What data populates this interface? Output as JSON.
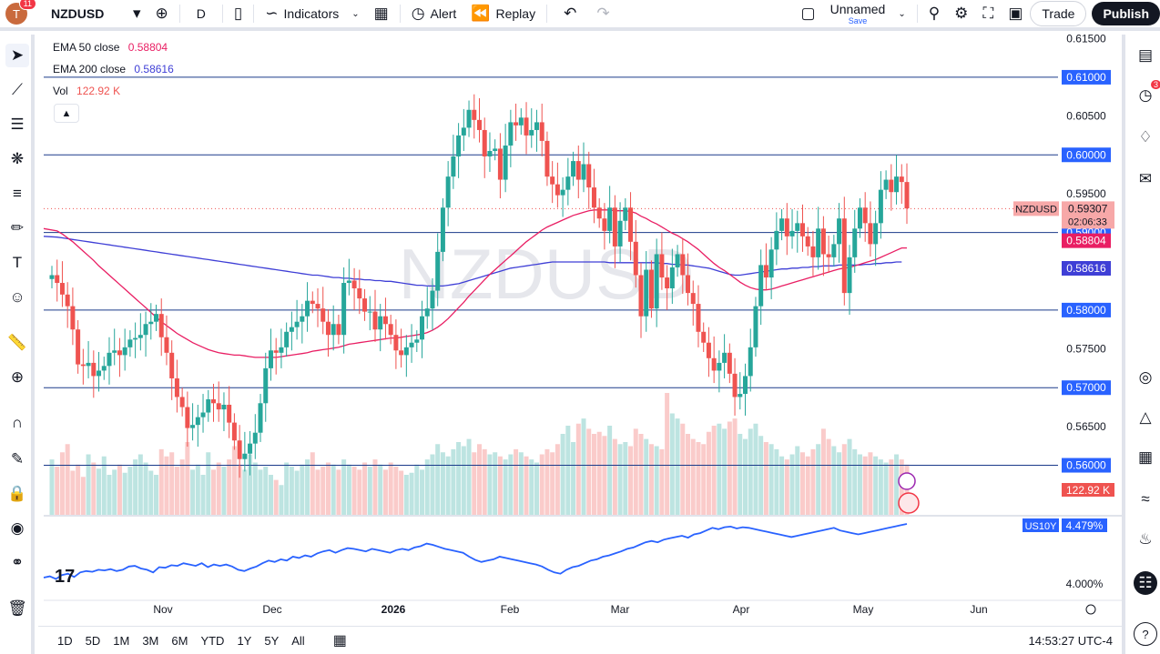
{
  "topbar": {
    "avatar_letter": "T",
    "avatar_badge": "11",
    "symbol": "NZDUSD",
    "interval": "D",
    "indicators_label": "Indicators",
    "alert_label": "Alert",
    "replay_label": "Replay",
    "layout_name": "Unnamed",
    "layout_save": "Save",
    "trade_label": "Trade",
    "publish_label": "Publish"
  },
  "legend": {
    "ema50_label": "EMA 50 close",
    "ema50_value": "0.58804",
    "ema200_label": "EMA 200 close",
    "ema200_value": "0.58616",
    "vol_label": "Vol",
    "vol_value": "122.92 K"
  },
  "rightbar": {
    "alerts_badge": "3"
  },
  "bottombar": {
    "ranges": [
      "1D",
      "5D",
      "1M",
      "3M",
      "6M",
      "YTD",
      "1Y",
      "5Y",
      "All"
    ],
    "clock": "14:53:27 UTC-4"
  },
  "colors": {
    "up": "#26a69a",
    "down": "#ef5350",
    "ema50": "#e91e63",
    "ema200": "#3f3fd6",
    "hline": "#2962ff",
    "us10y": "#2962ff"
  },
  "chart_data": {
    "type": "candlestick",
    "symbol_watermark": "NZDUSD",
    "x_labels": [
      "Nov",
      "Dec",
      "2026",
      "Feb",
      "Mar",
      "Apr",
      "May",
      "Jun"
    ],
    "y_ticks": [
      "0.61500",
      "0.60500",
      "0.59500",
      "0.57500",
      "0.56500"
    ],
    "ylim": [
      0.5535,
      0.6155
    ],
    "horizontal_levels": [
      0.61,
      0.6,
      0.59,
      0.58,
      0.57,
      0.56
    ],
    "level_labels": [
      "0.61000",
      "0.60000",
      "0.59000",
      "0.58000",
      "0.57000",
      "0.56000"
    ],
    "last_price": {
      "symbol": "NZDUSD",
      "value": 0.59307,
      "label": "0.59307",
      "countdown": "02:06:33"
    },
    "ema50_label": "0.58804",
    "ema200_label": "0.58616",
    "volume_label": "122.92 K",
    "closes": [
      0.5845,
      0.5835,
      0.582,
      0.5805,
      0.5775,
      0.573,
      0.5728,
      0.5732,
      0.5715,
      0.5722,
      0.5728,
      0.5745,
      0.5748,
      0.5742,
      0.5752,
      0.5762,
      0.5764,
      0.5768,
      0.5782,
      0.5785,
      0.5795,
      0.5765,
      0.5745,
      0.5712,
      0.5688,
      0.5675,
      0.5648,
      0.5652,
      0.5662,
      0.5668,
      0.5685,
      0.568,
      0.5672,
      0.5678,
      0.5655,
      0.5632,
      0.5608,
      0.5615,
      0.5628,
      0.5642,
      0.568,
      0.5725,
      0.5748,
      0.5745,
      0.5752,
      0.5772,
      0.5778,
      0.5785,
      0.5792,
      0.5812,
      0.5808,
      0.5802,
      0.5785,
      0.5768,
      0.5782,
      0.5768,
      0.5835,
      0.5838,
      0.5828,
      0.5815,
      0.5798,
      0.5798,
      0.5775,
      0.5792,
      0.5782,
      0.5768,
      0.5748,
      0.5742,
      0.5752,
      0.5758,
      0.5762,
      0.5792,
      0.5802,
      0.5825,
      0.5875,
      0.5932,
      0.5972,
      0.5998,
      0.6025,
      0.6035,
      0.6058,
      0.6045,
      0.6032,
      0.5998,
      0.6005,
      0.6008,
      0.5968,
      0.6012,
      0.6042,
      0.6038,
      0.6048,
      0.6025,
      0.6032,
      0.6042,
      0.6018,
      0.5972,
      0.5962,
      0.5948,
      0.5955,
      0.5972,
      0.5992,
      0.5968,
      0.5988,
      0.5958,
      0.5932,
      0.5918,
      0.5902,
      0.5932,
      0.5882,
      0.5915,
      0.5932,
      0.5888,
      0.5845,
      0.5792,
      0.5852,
      0.5802,
      0.5872,
      0.5842,
      0.5828,
      0.5855,
      0.5872,
      0.5845,
      0.5822,
      0.5808,
      0.5772,
      0.5758,
      0.5738,
      0.5722,
      0.5732,
      0.5745,
      0.5718,
      0.5688,
      0.5692,
      0.5715,
      0.5752,
      0.5805,
      0.5858,
      0.5842,
      0.5878,
      0.5902,
      0.5918,
      0.5895,
      0.5902,
      0.5912,
      0.5895,
      0.5882,
      0.5868,
      0.5905,
      0.5872,
      0.5868,
      0.5885,
      0.5918,
      0.5822,
      0.5868,
      0.5905,
      0.5932,
      0.5912,
      0.5885,
      0.5912,
      0.5955,
      0.5968,
      0.5952,
      0.5972,
      0.5965,
      0.5931
    ],
    "first_open": 0.584,
    "ema50": [
      0.5905,
      0.5902,
      0.5898,
      0.5893,
      0.5888,
      0.5882,
      0.5876,
      0.587,
      0.5864,
      0.5857,
      0.5851,
      0.5845,
      0.5839,
      0.5833,
      0.5827,
      0.5821,
      0.5815,
      0.5809,
      0.5803,
      0.5797,
      0.5791,
      0.5785,
      0.578,
      0.5775,
      0.577,
      0.5766,
      0.5762,
      0.5758,
      0.5755,
      0.5752,
      0.5749,
      0.5747,
      0.5745,
      0.5744,
      0.5743,
      0.5742,
      0.5742,
      0.5741,
      0.574,
      0.5739,
      0.5739,
      0.5739,
      0.5739,
      0.5739,
      0.574,
      0.5741,
      0.5742,
      0.5743,
      0.5744,
      0.5745,
      0.5747,
      0.5748,
      0.5749,
      0.575,
      0.5751,
      0.5752,
      0.5754,
      0.5756,
      0.5757,
      0.5758,
      0.5759,
      0.576,
      0.5761,
      0.5762,
      0.5763,
      0.5764,
      0.5764,
      0.5765,
      0.5766,
      0.5767,
      0.5768,
      0.5769,
      0.5771,
      0.5774,
      0.5778,
      0.5783,
      0.5789,
      0.5796,
      0.5803,
      0.581,
      0.5818,
      0.5825,
      0.5832,
      0.5839,
      0.5846,
      0.5852,
      0.5858,
      0.5864,
      0.587,
      0.5876,
      0.5882,
      0.5888,
      0.5893,
      0.5898,
      0.5903,
      0.5907,
      0.591,
      0.5913,
      0.5916,
      0.5919,
      0.5922,
      0.5924,
      0.5926,
      0.5928,
      0.5929,
      0.5929,
      0.5929,
      0.5929,
      0.5928,
      0.5928,
      0.5928,
      0.5927,
      0.5925,
      0.5921,
      0.5918,
      0.5914,
      0.5911,
      0.5907,
      0.5903,
      0.5899,
      0.5896,
      0.5892,
      0.5888,
      0.5883,
      0.5878,
      0.5872,
      0.5866,
      0.586,
      0.5855,
      0.5851,
      0.5846,
      0.5841,
      0.5836,
      0.5832,
      0.5829,
      0.5827,
      0.5826,
      0.5826,
      0.5827,
      0.5829,
      0.5831,
      0.5833,
      0.5835,
      0.5837,
      0.5839,
      0.5841,
      0.5843,
      0.5845,
      0.5847,
      0.5849,
      0.5851,
      0.5853,
      0.5854,
      0.5855,
      0.5857,
      0.5859,
      0.5861,
      0.5863,
      0.5865,
      0.5868,
      0.5871,
      0.5874,
      0.5877,
      0.588,
      0.588
    ],
    "ema200": [
      0.5895,
      0.5894,
      0.5893,
      0.5892,
      0.5891,
      0.589,
      0.5889,
      0.5888,
      0.5887,
      0.5886,
      0.5885,
      0.5884,
      0.5883,
      0.5882,
      0.5881,
      0.588,
      0.5879,
      0.5878,
      0.5877,
      0.5876,
      0.5875,
      0.5874,
      0.5873,
      0.5872,
      0.5871,
      0.587,
      0.5869,
      0.5868,
      0.5867,
      0.5866,
      0.5865,
      0.5864,
      0.5863,
      0.5862,
      0.5861,
      0.586,
      0.5859,
      0.5858,
      0.5857,
      0.5856,
      0.5855,
      0.5854,
      0.5853,
      0.5852,
      0.5851,
      0.585,
      0.5849,
      0.5848,
      0.5847,
      0.5846,
      0.5845,
      0.5845,
      0.5844,
      0.5843,
      0.5842,
      0.5842,
      0.5841,
      0.5841,
      0.584,
      0.584,
      0.5839,
      0.5839,
      0.5838,
      0.5838,
      0.5837,
      0.5837,
      0.5836,
      0.5835,
      0.5834,
      0.5833,
      0.5832,
      0.5832,
      0.5831,
      0.5831,
      0.5831,
      0.5831,
      0.5832,
      0.5833,
      0.5834,
      0.5836,
      0.5838,
      0.584,
      0.5842,
      0.5844,
      0.5846,
      0.5848,
      0.585,
      0.5852,
      0.5854,
      0.5855,
      0.5856,
      0.5857,
      0.5858,
      0.5859,
      0.586,
      0.5861,
      0.5862,
      0.5862,
      0.5862,
      0.5862,
      0.5862,
      0.5862,
      0.5862,
      0.5862,
      0.5862,
      0.5862,
      0.5862,
      0.5861,
      0.5861,
      0.5861,
      0.5861,
      0.5861,
      0.5861,
      0.5861,
      0.5861,
      0.5861,
      0.5861,
      0.586,
      0.586,
      0.5859,
      0.5859,
      0.5858,
      0.5858,
      0.5857,
      0.5856,
      0.5855,
      0.5854,
      0.5852,
      0.585,
      0.5848,
      0.5846,
      0.5845,
      0.5845,
      0.5846,
      0.5847,
      0.5848,
      0.5849,
      0.585,
      0.5851,
      0.5852,
      0.5853,
      0.5853,
      0.5854,
      0.5854,
      0.5855,
      0.5855,
      0.5856,
      0.5856,
      0.5857,
      0.5857,
      0.5857,
      0.5858,
      0.5858,
      0.5858,
      0.5858,
      0.5858,
      0.5859,
      0.5859,
      0.586,
      0.586,
      0.5861,
      0.5861,
      0.5862,
      0.5862
    ],
    "volume": [
      55,
      48,
      62,
      70,
      44,
      50,
      38,
      60,
      52,
      46,
      58,
      40,
      45,
      50,
      42,
      48,
      55,
      60,
      52,
      44,
      40,
      65,
      58,
      62,
      48,
      55,
      72,
      45,
      50,
      40,
      62,
      45,
      52,
      48,
      55,
      68,
      50,
      45,
      60,
      52,
      45,
      48,
      40,
      35,
      30,
      52,
      48,
      44,
      50,
      55,
      62,
      45,
      48,
      52,
      50,
      45,
      55,
      50,
      48,
      45,
      52,
      48,
      55,
      50,
      45,
      52,
      48,
      44,
      40,
      42,
      50,
      45,
      55,
      60,
      70,
      62,
      58,
      65,
      72,
      68,
      75,
      62,
      70,
      65,
      60,
      62,
      58,
      55,
      60,
      65,
      62,
      58,
      55,
      52,
      60,
      65,
      62,
      70,
      80,
      88,
      72,
      90,
      95,
      85,
      80,
      82,
      78,
      88,
      75,
      70,
      72,
      68,
      85,
      80,
      75,
      70,
      68,
      65,
      120,
      100,
      95,
      90,
      80,
      75,
      72,
      70,
      82,
      88,
      90,
      85,
      92,
      95,
      80,
      75,
      85,
      90,
      78,
      72,
      70,
      65,
      58,
      55,
      60,
      68,
      62,
      58,
      65,
      70,
      85,
      75,
      68,
      62,
      70,
      75,
      65,
      60,
      58,
      62,
      58,
      55,
      52,
      55,
      60,
      55,
      50,
      52,
      40
    ],
    "volume_labels": [
      "122.92 K"
    ],
    "us10y": {
      "label": "US10Y",
      "value": "4.479%",
      "tick": "4.000%",
      "values": [
        0.18,
        0.2,
        0.16,
        0.22,
        0.24,
        0.19,
        0.26,
        0.28,
        0.27,
        0.3,
        0.29,
        0.31,
        0.28,
        0.3,
        0.35,
        0.36,
        0.32,
        0.3,
        0.26,
        0.34,
        0.33,
        0.37,
        0.36,
        0.4,
        0.38,
        0.36,
        0.4,
        0.34,
        0.38,
        0.36,
        0.38,
        0.35,
        0.3,
        0.28,
        0.32,
        0.35,
        0.4,
        0.44,
        0.42,
        0.46,
        0.44,
        0.5,
        0.48,
        0.52,
        0.5,
        0.55,
        0.58,
        0.6,
        0.56,
        0.6,
        0.63,
        0.62,
        0.6,
        0.58,
        0.62,
        0.6,
        0.58,
        0.56,
        0.6,
        0.62,
        0.6,
        0.64,
        0.66,
        0.7,
        0.68,
        0.65,
        0.62,
        0.6,
        0.58,
        0.56,
        0.5,
        0.45,
        0.42,
        0.44,
        0.46,
        0.5,
        0.48,
        0.46,
        0.44,
        0.42,
        0.4,
        0.38,
        0.35,
        0.3,
        0.26,
        0.24,
        0.3,
        0.34,
        0.36,
        0.4,
        0.44,
        0.46,
        0.5,
        0.52,
        0.55,
        0.58,
        0.62,
        0.64,
        0.68,
        0.72,
        0.74,
        0.72,
        0.76,
        0.78,
        0.8,
        0.82,
        0.79,
        0.84,
        0.86,
        0.9,
        0.94,
        0.92,
        0.95,
        0.96,
        0.93,
        0.95,
        0.94,
        0.92,
        0.9,
        0.88,
        0.86,
        0.84,
        0.82,
        0.8,
        0.82,
        0.84,
        0.86,
        0.88,
        0.9,
        0.92,
        0.94,
        0.9,
        0.88,
        0.86,
        0.84,
        0.86,
        0.88,
        0.9,
        0.92,
        0.94,
        0.96,
        0.98,
        1.0
      ]
    }
  }
}
